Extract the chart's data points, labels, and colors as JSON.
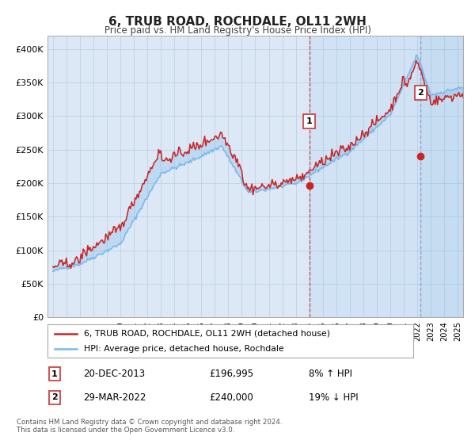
{
  "title": "6, TRUB ROAD, ROCHDALE, OL11 2WH",
  "subtitle": "Price paid vs. HM Land Registry's House Price Index (HPI)",
  "ylabel_ticks": [
    "£0",
    "£50K",
    "£100K",
    "£150K",
    "£200K",
    "£250K",
    "£300K",
    "£350K",
    "£400K"
  ],
  "ytick_vals": [
    0,
    50000,
    100000,
    150000,
    200000,
    250000,
    300000,
    350000,
    400000
  ],
  "ylim": [
    0,
    420000
  ],
  "hpi_color": "#7ab8e8",
  "price_color": "#cc2222",
  "background_color": "#ffffff",
  "chart_bg": "#dce8f5",
  "grid_color": "#b8cfe0",
  "legend_label_price": "6, TRUB ROAD, ROCHDALE, OL11 2WH (detached house)",
  "legend_label_hpi": "HPI: Average price, detached house, Rochdale",
  "annotation1_label": "1",
  "annotation1_date": "20-DEC-2013",
  "annotation1_price": "£196,995",
  "annotation1_pct": "8% ↑ HPI",
  "annotation1_year": 2014.0,
  "annotation1_value": 196995,
  "annotation2_label": "2",
  "annotation2_date": "29-MAR-2022",
  "annotation2_price": "£240,000",
  "annotation2_pct": "19% ↓ HPI",
  "annotation2_year": 2022.25,
  "annotation2_value": 240000,
  "footer": "Contains HM Land Registry data © Crown copyright and database right 2024.\nThis data is licensed under the Open Government Licence v3.0.",
  "xlim_start": 1994.6,
  "xlim_end": 2025.4
}
